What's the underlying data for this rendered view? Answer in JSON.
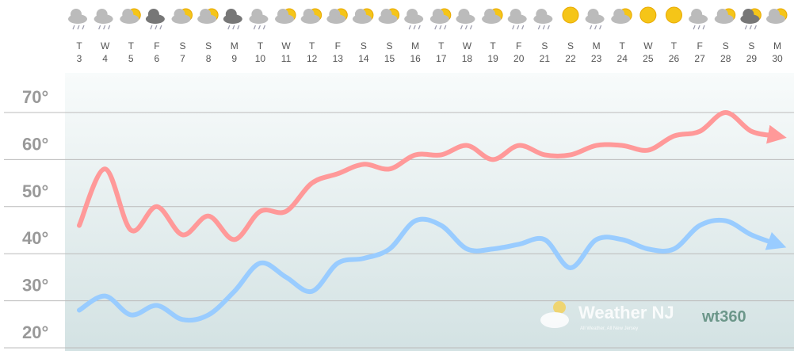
{
  "chart_data": {
    "type": "line",
    "categories": [
      [
        "T",
        "3"
      ],
      [
        "W",
        "4"
      ],
      [
        "T",
        "5"
      ],
      [
        "F",
        "6"
      ],
      [
        "S",
        "7"
      ],
      [
        "S",
        "8"
      ],
      [
        "M",
        "9"
      ],
      [
        "T",
        "10"
      ],
      [
        "W",
        "11"
      ],
      [
        "T",
        "12"
      ],
      [
        "F",
        "13"
      ],
      [
        "S",
        "14"
      ],
      [
        "S",
        "15"
      ],
      [
        "M",
        "16"
      ],
      [
        "T",
        "17"
      ],
      [
        "W",
        "18"
      ],
      [
        "T",
        "19"
      ],
      [
        "F",
        "20"
      ],
      [
        "S",
        "21"
      ],
      [
        "S",
        "22"
      ],
      [
        "M",
        "23"
      ],
      [
        "T",
        "24"
      ],
      [
        "W",
        "25"
      ],
      [
        "T",
        "26"
      ],
      [
        "F",
        "27"
      ],
      [
        "S",
        "28"
      ],
      [
        "S",
        "29"
      ],
      [
        "M",
        "30"
      ]
    ],
    "series": [
      {
        "color": "#ff9999",
        "values": [
          46,
          58,
          45,
          50,
          44,
          48,
          43,
          49,
          49,
          55,
          57,
          59,
          58,
          61,
          61,
          63,
          60,
          63,
          61,
          61,
          63,
          63,
          62,
          65,
          66,
          70,
          66,
          65
        ]
      },
      {
        "color": "#99ccff",
        "values": [
          28,
          31,
          27,
          29,
          26,
          27,
          32,
          38,
          35,
          32,
          38,
          39,
          41,
          47,
          46,
          41,
          41,
          42,
          43,
          37,
          43,
          43,
          41,
          41,
          46,
          47,
          44,
          42
        ]
      }
    ],
    "ylim": [
      20,
      70
    ],
    "yticks": [
      {
        "value": 20,
        "label": "20°"
      },
      {
        "value": 30,
        "label": "30°"
      },
      {
        "value": 40,
        "label": "40°"
      },
      {
        "value": 50,
        "label": "50°"
      },
      {
        "value": 60,
        "label": "60°"
      },
      {
        "value": 70,
        "label": "70°"
      }
    ],
    "grid": true,
    "watermark": {
      "brand": "Weather NJ",
      "tagline": "All Weather, All New Jersey",
      "partner": "wt360"
    }
  }
}
